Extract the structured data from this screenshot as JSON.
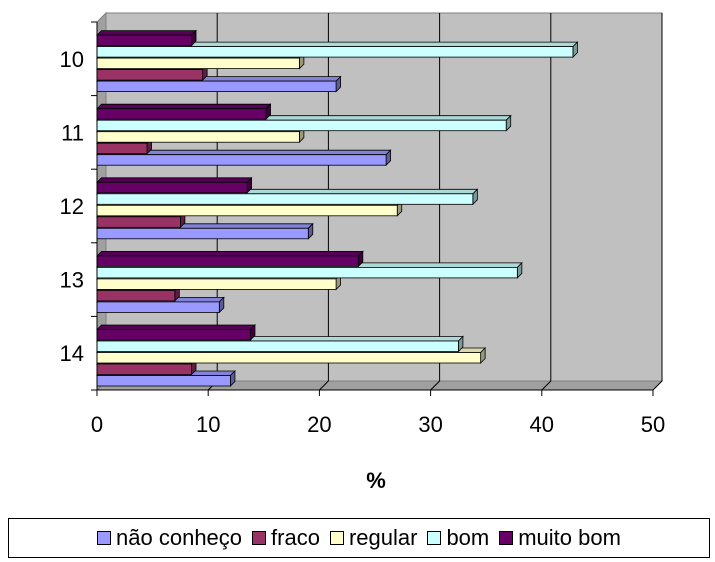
{
  "chart_data": {
    "type": "bar",
    "orientation": "horizontal",
    "style": "3d-clustered",
    "categories": [
      "10",
      "11",
      "12",
      "13",
      "14"
    ],
    "series": [
      {
        "name": "não conheço",
        "color": "#9999ff",
        "values": [
          21.5,
          26,
          19,
          11,
          12
        ]
      },
      {
        "name": "fraco",
        "color": "#993366",
        "values": [
          9.5,
          4.5,
          7.5,
          7.0,
          8.5
        ]
      },
      {
        "name": "regular",
        "color": "#ffffcc",
        "values": [
          18.2,
          18.2,
          27,
          21.5,
          34.5
        ]
      },
      {
        "name": "bom",
        "color": "#ccffff",
        "values": [
          42.8,
          36.8,
          33.8,
          37.8,
          32.5
        ]
      },
      {
        "name": "muito bom",
        "color": "#660066",
        "values": [
          8.5,
          15.2,
          13.5,
          23.5,
          13.8
        ]
      }
    ],
    "xlabel": "%",
    "ylabel": "",
    "xlim": [
      0,
      50
    ],
    "xticks": [
      0,
      10,
      20,
      30,
      40,
      50
    ],
    "grid": true,
    "wall_color": "#c0c0c0",
    "legend_position": "bottom"
  }
}
